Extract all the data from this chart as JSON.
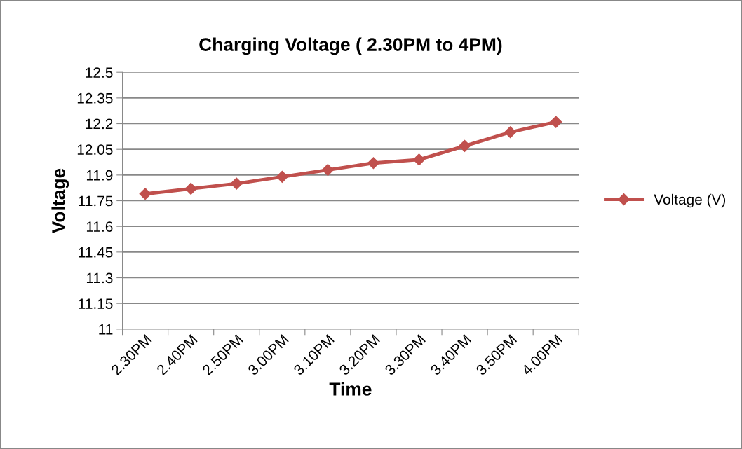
{
  "chart_data": {
    "type": "line",
    "title": "Charging Voltage ( 2.30PM to 4PM)",
    "xlabel": "Time",
    "ylabel": "Voltage",
    "categories": [
      "2.30PM",
      "2.40PM",
      "2.50PM",
      "3.00PM",
      "3.10PM",
      "3.20PM",
      "3.30PM",
      "3.40PM",
      "3.50PM",
      "4.00PM"
    ],
    "series": [
      {
        "name": "Voltage (V)",
        "color": "#c0504d",
        "values": [
          11.79,
          11.82,
          11.85,
          11.89,
          11.93,
          11.97,
          11.99,
          12.07,
          12.15,
          12.21
        ]
      }
    ],
    "ylim": [
      11,
      12.5
    ],
    "yticks": [
      11,
      11.15,
      11.3,
      11.45,
      11.6,
      11.75,
      11.9,
      12.05,
      12.2,
      12.35,
      12.5
    ],
    "grid": "y",
    "legend": "right",
    "marker": "diamond",
    "line_style": "solid"
  }
}
